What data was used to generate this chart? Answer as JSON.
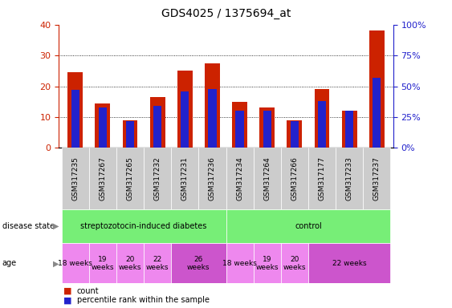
{
  "title": "GDS4025 / 1375694_at",
  "samples": [
    "GSM317235",
    "GSM317267",
    "GSM317265",
    "GSM317232",
    "GSM317231",
    "GSM317236",
    "GSM317234",
    "GSM317264",
    "GSM317266",
    "GSM317177",
    "GSM317233",
    "GSM317237"
  ],
  "counts": [
    24.5,
    14.5,
    9.0,
    16.5,
    25.0,
    27.5,
    14.8,
    13.2,
    9.0,
    19.0,
    12.0,
    38.0
  ],
  "percentile": [
    47,
    33,
    22,
    34,
    46,
    48,
    30,
    30,
    22,
    38,
    30,
    57
  ],
  "bar_color": "#cc2200",
  "pct_color": "#2222cc",
  "ylim_left": [
    0,
    40
  ],
  "ylim_right": [
    0,
    100
  ],
  "yticks_left": [
    0,
    10,
    20,
    30,
    40
  ],
  "yticks_right": [
    0,
    25,
    50,
    75,
    100
  ],
  "ytick_labels_right": [
    "0%",
    "25%",
    "50%",
    "75%",
    "100%"
  ],
  "legend_count_label": "count",
  "legend_pct_label": "percentile rank within the sample",
  "background_color": "#ffffff",
  "tick_label_color_left": "#cc2200",
  "tick_label_color_right": "#2222cc",
  "bar_width": 0.55,
  "pct_bar_width": 0.3,
  "ds_groups": [
    {
      "label": "streptozotocin-induced diabetes",
      "start": 0,
      "end": 6,
      "color": "#77ee77"
    },
    {
      "label": "control",
      "start": 6,
      "end": 12,
      "color": "#77ee77"
    }
  ],
  "age_groups": [
    {
      "label": "18 weeks",
      "start": 0,
      "end": 1,
      "color": "#ee88ee",
      "two_line": false
    },
    {
      "label": "19\nweeks",
      "start": 1,
      "end": 2,
      "color": "#ee88ee",
      "two_line": true
    },
    {
      "label": "20\nweeks",
      "start": 2,
      "end": 3,
      "color": "#ee88ee",
      "two_line": true
    },
    {
      "label": "22\nweeks",
      "start": 3,
      "end": 4,
      "color": "#ee88ee",
      "two_line": true
    },
    {
      "label": "26\nweeks",
      "start": 4,
      "end": 6,
      "color": "#cc55cc",
      "two_line": true
    },
    {
      "label": "18 weeks",
      "start": 6,
      "end": 7,
      "color": "#ee88ee",
      "two_line": false
    },
    {
      "label": "19\nweeks",
      "start": 7,
      "end": 8,
      "color": "#ee88ee",
      "two_line": true
    },
    {
      "label": "20\nweeks",
      "start": 8,
      "end": 9,
      "color": "#ee88ee",
      "two_line": true
    },
    {
      "label": "22 weeks",
      "start": 9,
      "end": 12,
      "color": "#cc55cc",
      "two_line": false
    }
  ],
  "sample_bg_color": "#cccccc",
  "sample_border_color": "#ffffff"
}
